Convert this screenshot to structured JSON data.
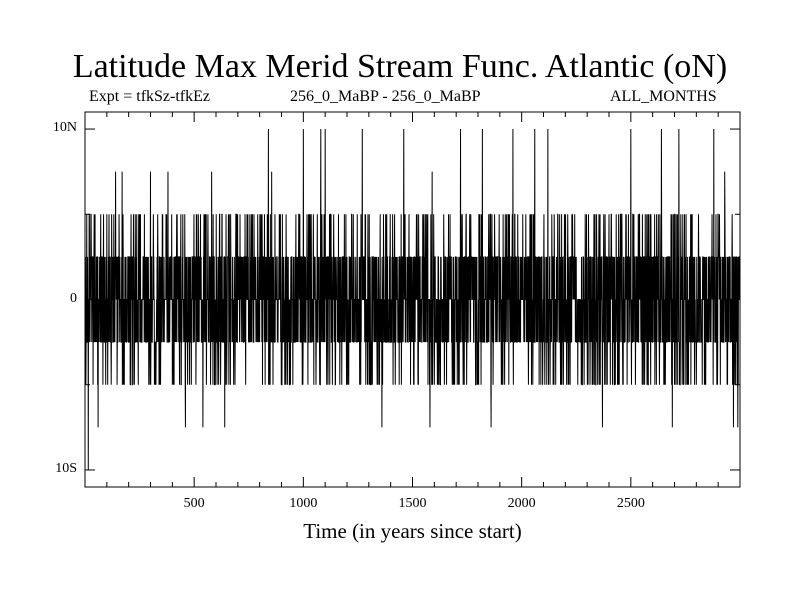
{
  "chart_data": {
    "type": "line",
    "title": "Latitude Max Merid Stream Func. Atlantic (oN)",
    "subtitle_left": "Expt = tfkSz-tfkEz",
    "subtitle_center": "256_0_MaBP - 256_0_MaBP",
    "subtitle_right": "ALL_MONTHS",
    "xlabel": "Time (in years since start)",
    "ylabel": "",
    "xlim": [
      0,
      3000
    ],
    "ylim": [
      -11,
      11
    ],
    "x_ticks": [
      500,
      1000,
      1500,
      2000,
      2500
    ],
    "x_tick_labels": [
      "500",
      "1000",
      "1500",
      "2000",
      "2500"
    ],
    "y_ticks": [
      10,
      0,
      -10
    ],
    "y_tick_labels": [
      "10N",
      "0",
      "10S"
    ],
    "levels": [
      -10,
      -7.5,
      -5,
      -2.5,
      0,
      2.5,
      5,
      7.5,
      10
    ],
    "series_note": "annual values on a 2.5-degree latitude grid, 1 point per year",
    "sampled_extremes": [
      {
        "x": 15,
        "y": -10
      },
      {
        "x": 60,
        "y": -7.5
      },
      {
        "x": 140,
        "y": 7.5
      },
      {
        "x": 170,
        "y": 7.5
      },
      {
        "x": 300,
        "y": 7.5
      },
      {
        "x": 380,
        "y": 7.5
      },
      {
        "x": 460,
        "y": -7.5
      },
      {
        "x": 540,
        "y": -7.5
      },
      {
        "x": 580,
        "y": 7.5
      },
      {
        "x": 640,
        "y": -7.5
      },
      {
        "x": 840,
        "y": 10
      },
      {
        "x": 855,
        "y": 7.5
      },
      {
        "x": 1000,
        "y": 10
      },
      {
        "x": 1080,
        "y": 10
      },
      {
        "x": 1100,
        "y": 10
      },
      {
        "x": 1270,
        "y": 10
      },
      {
        "x": 1360,
        "y": -7.5
      },
      {
        "x": 1460,
        "y": 10
      },
      {
        "x": 1580,
        "y": -7.5
      },
      {
        "x": 1590,
        "y": 7.5
      },
      {
        "x": 1720,
        "y": 10
      },
      {
        "x": 1820,
        "y": 10
      },
      {
        "x": 1860,
        "y": -7.5
      },
      {
        "x": 1960,
        "y": 10
      },
      {
        "x": 2060,
        "y": 10
      },
      {
        "x": 2120,
        "y": 10
      },
      {
        "x": 2370,
        "y": -7.5
      },
      {
        "x": 2500,
        "y": 10
      },
      {
        "x": 2640,
        "y": 10
      },
      {
        "x": 2690,
        "y": -7.5
      },
      {
        "x": 2720,
        "y": 10
      },
      {
        "x": 2880,
        "y": 10
      },
      {
        "x": 2930,
        "y": 7.5
      },
      {
        "x": 2970,
        "y": -7.5
      },
      {
        "x": 2990,
        "y": -7.5
      }
    ]
  }
}
